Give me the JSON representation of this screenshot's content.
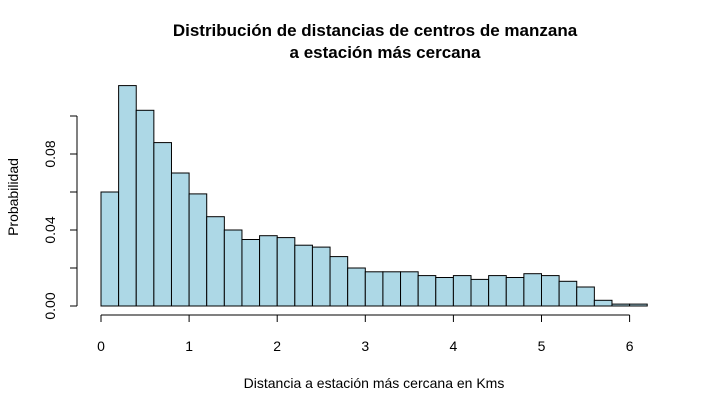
{
  "chart_data": {
    "type": "bar",
    "title": "Distribución de distancias de centros de manzana",
    "subtitle": "a estación más cercana",
    "xlabel": "Distancia a estación más cercana en Kms",
    "ylabel": "Probabilidad",
    "bin_width": 0.2,
    "bin_starts": [
      0.0,
      0.2,
      0.4,
      0.6,
      0.8,
      1.0,
      1.2,
      1.4,
      1.6,
      1.8,
      2.0,
      2.2,
      2.4,
      2.6,
      2.8,
      3.0,
      3.2,
      3.4,
      3.6,
      3.8,
      4.0,
      4.2,
      4.4,
      4.6,
      4.8,
      5.0,
      5.2,
      5.4,
      5.6,
      5.8,
      6.0
    ],
    "values": [
      0.06,
      0.116,
      0.103,
      0.086,
      0.07,
      0.059,
      0.047,
      0.04,
      0.035,
      0.037,
      0.036,
      0.032,
      0.031,
      0.026,
      0.02,
      0.018,
      0.018,
      0.018,
      0.016,
      0.015,
      0.016,
      0.014,
      0.016,
      0.015,
      0.017,
      0.016,
      0.013,
      0.01,
      0.003,
      0.001,
      0.001
    ],
    "xlim": [
      0,
      6.2
    ],
    "ylim": [
      0,
      0.1
    ],
    "x_ticks": [
      "0",
      "1",
      "2",
      "3",
      "4",
      "5",
      "6"
    ],
    "y_ticks": [
      "0.00",
      "0.04",
      "0.08"
    ],
    "bar_color": "#add8e6",
    "bar_border_color": "#000000",
    "grid": false
  }
}
